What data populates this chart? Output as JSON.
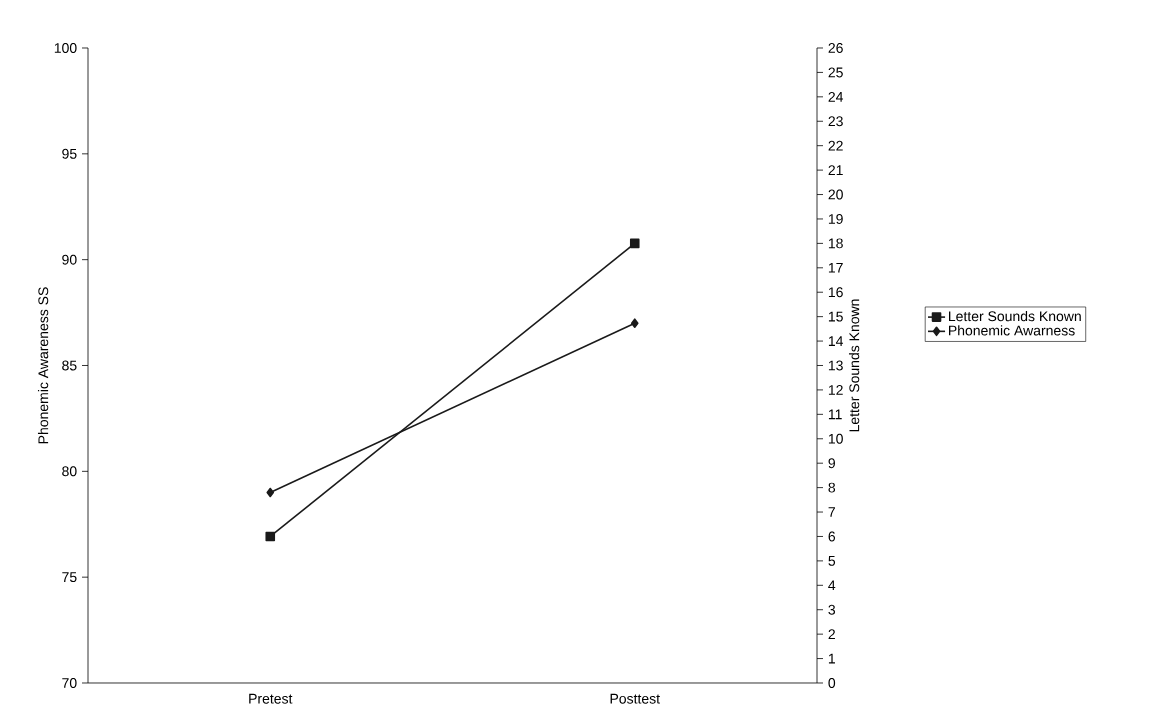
{
  "chart_data": {
    "type": "line",
    "categories": [
      "Pretest",
      "Posttest"
    ],
    "ylabel": "Phonemic Awareness SS",
    "y2label": "Letter Sounds Known",
    "ylim": [
      70,
      100
    ],
    "yticks": [
      70,
      75,
      80,
      85,
      90,
      95,
      100
    ],
    "y2lim": [
      0,
      26
    ],
    "y2ticks": [
      0,
      1,
      2,
      3,
      4,
      5,
      6,
      7,
      8,
      9,
      10,
      11,
      12,
      13,
      14,
      15,
      16,
      17,
      18,
      19,
      20,
      21,
      22,
      23,
      24,
      25,
      26
    ],
    "legend": "right",
    "grid": false,
    "line_style": "solid",
    "series": [
      {
        "name": "Letter Sounds Known",
        "color": "#1a1a1a",
        "values": [
          6,
          18
        ],
        "axis": "y2",
        "marker": "square"
      },
      {
        "name": "Phonemic Awarness",
        "color": "#1a1a1a",
        "values": [
          79,
          87
        ],
        "axis": "y",
        "marker": "diamond"
      }
    ]
  }
}
